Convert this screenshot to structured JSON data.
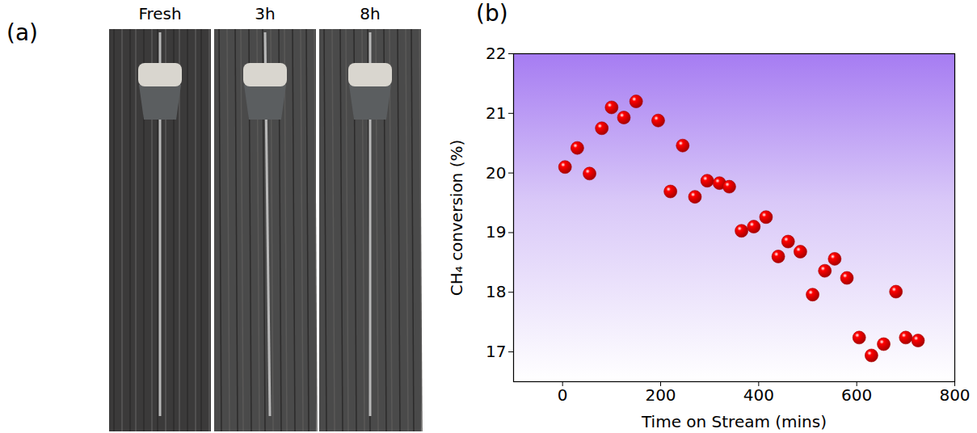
{
  "chart_data": {
    "type": "scatter",
    "panel": "(b)",
    "xlabel": "Time on Stream (mins)",
    "ylabel": "CH₄ conversion (%)",
    "x": [
      5,
      30,
      55,
      80,
      100,
      125,
      150,
      195,
      220,
      245,
      270,
      295,
      320,
      340,
      365,
      390,
      415,
      440,
      460,
      485,
      510,
      535,
      555,
      580,
      605,
      630,
      655,
      680,
      700,
      725
    ],
    "values": [
      20.1,
      20.42,
      19.99,
      20.75,
      21.1,
      20.93,
      21.2,
      20.88,
      19.69,
      20.46,
      19.6,
      19.87,
      19.83,
      19.77,
      19.03,
      19.1,
      19.26,
      18.6,
      18.85,
      18.68,
      17.96,
      18.36,
      18.56,
      18.24,
      17.24,
      16.94,
      17.13,
      18.01,
      17.24,
      17.19
    ],
    "color": "#ff0000",
    "marker": "sphere",
    "xlim": [
      -100,
      800
    ],
    "xticks": [
      0,
      200,
      400,
      600,
      800
    ],
    "ylim": [
      16.5,
      22
    ],
    "yticks": [
      17,
      18,
      19,
      20,
      21,
      22
    ],
    "grid": false
  },
  "photos": {
    "panel": "(a)",
    "labels": [
      "Fresh",
      "3h",
      "8h"
    ]
  }
}
